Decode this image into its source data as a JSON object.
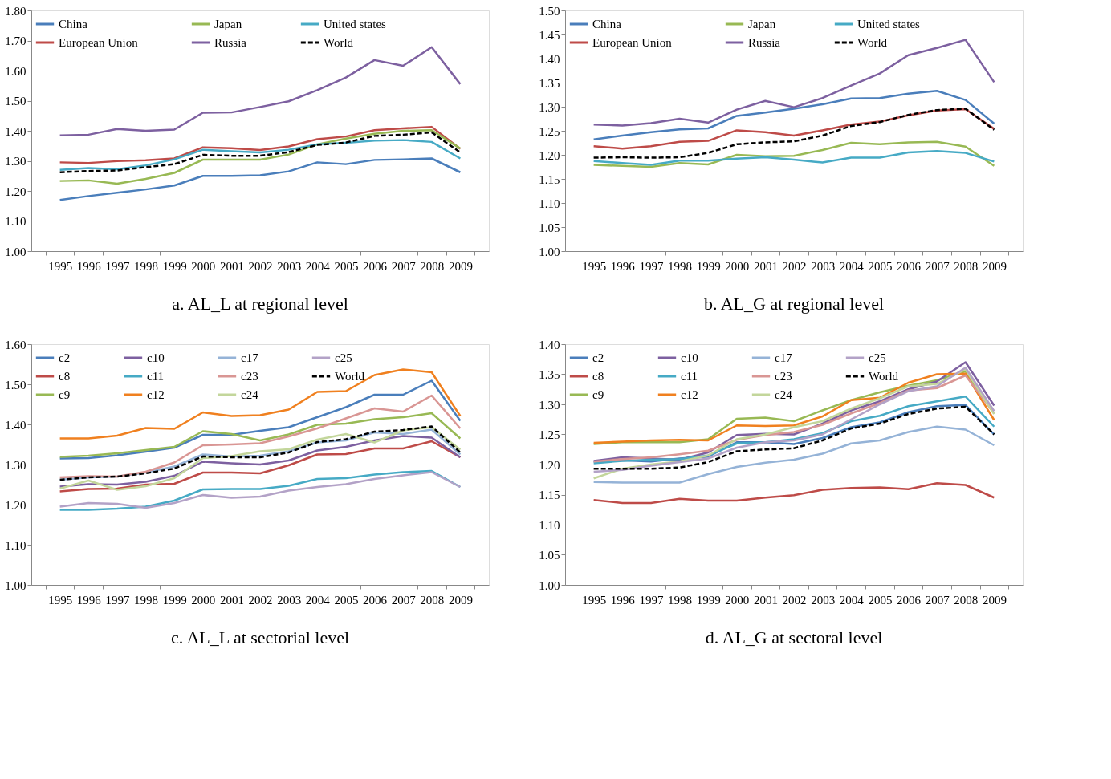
{
  "chart_data": [
    {
      "type": "line",
      "title": "a. AL_L at regional level",
      "categories": [
        "1995",
        "1996",
        "1997",
        "1998",
        "1999",
        "2000",
        "2001",
        "2002",
        "2003",
        "2004",
        "2005",
        "2006",
        "2007",
        "2008",
        "2009"
      ],
      "ylim": [
        1.0,
        1.8
      ],
      "yticks": [
        {
          "value": 1.0,
          "label": "1.00"
        },
        {
          "value": 1.1,
          "label": "1.10"
        },
        {
          "value": 1.2,
          "label": "1.20"
        },
        {
          "value": 1.3,
          "label": "1.30"
        },
        {
          "value": 1.4,
          "label": "1.40"
        },
        {
          "value": 1.5,
          "label": "1.50"
        },
        {
          "value": 1.6,
          "label": "1.60"
        },
        {
          "value": 1.7,
          "label": "1.70"
        },
        {
          "value": 1.8,
          "label": "1.80"
        }
      ],
      "grid": false,
      "legend": "top",
      "marker": "none",
      "series": [
        {
          "name": "China",
          "color": "#4a7ebb",
          "line_style": "solid",
          "values": [
            1.17,
            1.183,
            1.194,
            1.205,
            1.218,
            1.25,
            1.25,
            1.252,
            1.265,
            1.295,
            1.289,
            1.303,
            1.305,
            1.308,
            1.262
          ]
        },
        {
          "name": "European Union",
          "color": "#be4b48",
          "line_style": "solid",
          "values": [
            1.295,
            1.293,
            1.299,
            1.302,
            1.308,
            1.345,
            1.342,
            1.336,
            1.348,
            1.372,
            1.381,
            1.402,
            1.408,
            1.413,
            1.34
          ]
        },
        {
          "name": "Japan",
          "color": "#98b954",
          "line_style": "solid",
          "values": [
            1.233,
            1.235,
            1.224,
            1.24,
            1.26,
            1.304,
            1.304,
            1.304,
            1.321,
            1.355,
            1.374,
            1.39,
            1.4,
            1.402,
            1.341
          ]
        },
        {
          "name": "Russia",
          "color": "#7d60a0",
          "line_style": "solid",
          "values": [
            1.385,
            1.387,
            1.406,
            1.4,
            1.404,
            1.46,
            1.461,
            1.479,
            1.498,
            1.535,
            1.577,
            1.635,
            1.616,
            1.678,
            1.555
          ]
        },
        {
          "name": "United states",
          "color": "#46aac5",
          "line_style": "solid",
          "values": [
            1.27,
            1.276,
            1.272,
            1.285,
            1.305,
            1.337,
            1.332,
            1.328,
            1.337,
            1.355,
            1.36,
            1.367,
            1.369,
            1.363,
            1.308
          ]
        },
        {
          "name": "World",
          "color": "#000000",
          "line_style": "dashed",
          "values": [
            1.262,
            1.266,
            1.268,
            1.279,
            1.289,
            1.32,
            1.317,
            1.317,
            1.329,
            1.353,
            1.361,
            1.383,
            1.387,
            1.395,
            1.328
          ]
        }
      ]
    },
    {
      "type": "line",
      "title": "b. AL_G at regional level",
      "categories": [
        "1995",
        "1996",
        "1997",
        "1998",
        "1999",
        "2000",
        "2001",
        "2002",
        "2003",
        "2004",
        "2005",
        "2006",
        "2007",
        "2008",
        "2009"
      ],
      "ylim": [
        1.0,
        1.5
      ],
      "yticks": [
        {
          "value": 1.0,
          "label": "1.00"
        },
        {
          "value": 1.05,
          "label": "1.05"
        },
        {
          "value": 1.1,
          "label": "1.10"
        },
        {
          "value": 1.15,
          "label": "1.15"
        },
        {
          "value": 1.2,
          "label": "1.20"
        },
        {
          "value": 1.25,
          "label": "1.25"
        },
        {
          "value": 1.3,
          "label": "1.30"
        },
        {
          "value": 1.35,
          "label": "1.35"
        },
        {
          "value": 1.4,
          "label": "1.40"
        },
        {
          "value": 1.45,
          "label": "1.45"
        },
        {
          "value": 1.5,
          "label": "1.50"
        }
      ],
      "grid": false,
      "legend": "top",
      "marker": "none",
      "series": [
        {
          "name": "China",
          "color": "#4a7ebb",
          "line_style": "solid",
          "values": [
            1.232,
            1.24,
            1.247,
            1.253,
            1.255,
            1.281,
            1.288,
            1.296,
            1.305,
            1.317,
            1.318,
            1.327,
            1.333,
            1.314,
            1.265
          ]
        },
        {
          "name": "European Union",
          "color": "#be4b48",
          "line_style": "solid",
          "values": [
            1.218,
            1.213,
            1.218,
            1.227,
            1.229,
            1.251,
            1.247,
            1.24,
            1.251,
            1.263,
            1.269,
            1.282,
            1.292,
            1.295,
            1.254
          ]
        },
        {
          "name": "Japan",
          "color": "#98b954",
          "line_style": "solid",
          "values": [
            1.179,
            1.177,
            1.175,
            1.183,
            1.18,
            1.2,
            1.197,
            1.198,
            1.21,
            1.225,
            1.222,
            1.226,
            1.227,
            1.217,
            1.177
          ]
        },
        {
          "name": "Russia",
          "color": "#7d60a0",
          "line_style": "solid",
          "values": [
            1.263,
            1.261,
            1.266,
            1.275,
            1.267,
            1.294,
            1.312,
            1.299,
            1.318,
            1.344,
            1.369,
            1.407,
            1.422,
            1.439,
            1.351
          ]
        },
        {
          "name": "United states",
          "color": "#46aac5",
          "line_style": "solid",
          "values": [
            1.187,
            1.183,
            1.179,
            1.188,
            1.188,
            1.192,
            1.195,
            1.19,
            1.184,
            1.194,
            1.194,
            1.205,
            1.208,
            1.204,
            1.186
          ]
        },
        {
          "name": "World",
          "color": "#000000",
          "line_style": "dashed",
          "values": [
            1.194,
            1.195,
            1.194,
            1.195,
            1.204,
            1.222,
            1.226,
            1.228,
            1.24,
            1.26,
            1.268,
            1.283,
            1.293,
            1.296,
            1.252
          ]
        }
      ]
    },
    {
      "type": "line",
      "title": "c. AL_L at  sectorial level",
      "categories": [
        "1995",
        "1996",
        "1997",
        "1998",
        "1999",
        "2000",
        "2001",
        "2002",
        "2003",
        "2004",
        "2005",
        "2006",
        "2007",
        "2008",
        "2009"
      ],
      "ylim": [
        1.0,
        1.6
      ],
      "yticks": [
        {
          "value": 1.0,
          "label": "1.00"
        },
        {
          "value": 1.1,
          "label": "1.10"
        },
        {
          "value": 1.2,
          "label": "1.20"
        },
        {
          "value": 1.3,
          "label": "1.30"
        },
        {
          "value": 1.4,
          "label": "1.40"
        },
        {
          "value": 1.5,
          "label": "1.50"
        },
        {
          "value": 1.6,
          "label": "1.60"
        }
      ],
      "grid": false,
      "legend": "top",
      "marker": "none",
      "series": [
        {
          "name": "c2",
          "color": "#4a7ebb",
          "line_style": "solid",
          "values": [
            1.315,
            1.316,
            1.323,
            1.332,
            1.342,
            1.374,
            1.374,
            1.384,
            1.393,
            1.418,
            1.443,
            1.474,
            1.474,
            1.509,
            1.409
          ]
        },
        {
          "name": "c8",
          "color": "#be4b48",
          "line_style": "solid",
          "values": [
            1.233,
            1.239,
            1.24,
            1.25,
            1.252,
            1.28,
            1.28,
            1.278,
            1.298,
            1.325,
            1.326,
            1.34,
            1.34,
            1.358,
            1.318
          ]
        },
        {
          "name": "c9",
          "color": "#98b954",
          "line_style": "solid",
          "values": [
            1.319,
            1.322,
            1.328,
            1.336,
            1.344,
            1.383,
            1.376,
            1.36,
            1.375,
            1.399,
            1.402,
            1.413,
            1.418,
            1.428,
            1.365
          ]
        },
        {
          "name": "c10",
          "color": "#7d60a0",
          "line_style": "solid",
          "values": [
            1.245,
            1.251,
            1.25,
            1.257,
            1.272,
            1.307,
            1.303,
            1.3,
            1.31,
            1.335,
            1.344,
            1.36,
            1.371,
            1.367,
            1.318
          ]
        },
        {
          "name": "c11",
          "color": "#46aac5",
          "line_style": "solid",
          "values": [
            1.187,
            1.187,
            1.19,
            1.195,
            1.21,
            1.238,
            1.239,
            1.239,
            1.247,
            1.264,
            1.266,
            1.275,
            1.281,
            1.284,
            1.244
          ]
        },
        {
          "name": "c12",
          "color": "#f0801f",
          "line_style": "solid",
          "values": [
            1.365,
            1.365,
            1.372,
            1.391,
            1.389,
            1.43,
            1.421,
            1.423,
            1.437,
            1.481,
            1.483,
            1.523,
            1.537,
            1.53,
            1.421
          ]
        },
        {
          "name": "c17",
          "color": "#95b3d7",
          "line_style": "solid",
          "values": [
            1.262,
            1.268,
            1.27,
            1.28,
            1.295,
            1.325,
            1.32,
            1.322,
            1.333,
            1.355,
            1.36,
            1.38,
            1.376,
            1.387,
            1.325
          ]
        },
        {
          "name": "c23",
          "color": "#d99694",
          "line_style": "solid",
          "values": [
            1.268,
            1.271,
            1.27,
            1.282,
            1.305,
            1.348,
            1.35,
            1.353,
            1.37,
            1.39,
            1.415,
            1.44,
            1.432,
            1.472,
            1.39
          ]
        },
        {
          "name": "c24",
          "color": "#c3d69b",
          "line_style": "solid",
          "values": [
            1.24,
            1.26,
            1.237,
            1.246,
            1.266,
            1.316,
            1.321,
            1.333,
            1.338,
            1.362,
            1.376,
            1.355,
            1.385,
            1.393,
            1.337
          ]
        },
        {
          "name": "c25",
          "color": "#b3a2c7",
          "line_style": "solid",
          "values": [
            1.195,
            1.204,
            1.202,
            1.192,
            1.204,
            1.224,
            1.217,
            1.22,
            1.235,
            1.244,
            1.251,
            1.264,
            1.273,
            1.281,
            1.244
          ]
        },
        {
          "name": "World",
          "color": "#000000",
          "line_style": "dashed",
          "values": [
            1.262,
            1.268,
            1.27,
            1.278,
            1.29,
            1.32,
            1.318,
            1.318,
            1.33,
            1.356,
            1.363,
            1.382,
            1.386,
            1.395,
            1.33
          ]
        }
      ]
    },
    {
      "type": "line",
      "title": "d. AL_G at sectoral level",
      "categories": [
        "1995",
        "1996",
        "1997",
        "1998",
        "1999",
        "2000",
        "2001",
        "2002",
        "2003",
        "2004",
        "2005",
        "2006",
        "2007",
        "2008",
        "2009"
      ],
      "ylim": [
        1.0,
        1.4
      ],
      "yticks": [
        {
          "value": 1.0,
          "label": "1.00"
        },
        {
          "value": 1.05,
          "label": "1.05"
        },
        {
          "value": 1.1,
          "label": "1.10"
        },
        {
          "value": 1.15,
          "label": "1.15"
        },
        {
          "value": 1.2,
          "label": "1.20"
        },
        {
          "value": 1.25,
          "label": "1.25"
        },
        {
          "value": 1.3,
          "label": "1.30"
        },
        {
          "value": 1.35,
          "label": "1.35"
        },
        {
          "value": 1.4,
          "label": "1.40"
        }
      ],
      "grid": false,
      "legend": "top",
      "marker": "none",
      "series": [
        {
          "name": "c2",
          "color": "#4a7ebb",
          "line_style": "solid",
          "values": [
            1.205,
            1.207,
            1.205,
            1.21,
            1.213,
            1.237,
            1.237,
            1.234,
            1.244,
            1.262,
            1.27,
            1.287,
            1.297,
            1.299,
            1.25
          ]
        },
        {
          "name": "c8",
          "color": "#be4b48",
          "line_style": "solid",
          "values": [
            1.141,
            1.136,
            1.136,
            1.143,
            1.14,
            1.14,
            1.145,
            1.149,
            1.158,
            1.161,
            1.162,
            1.159,
            1.169,
            1.166,
            1.145
          ]
        },
        {
          "name": "c9",
          "color": "#98b954",
          "line_style": "solid",
          "values": [
            1.234,
            1.237,
            1.237,
            1.237,
            1.242,
            1.276,
            1.278,
            1.272,
            1.29,
            1.307,
            1.32,
            1.331,
            1.34,
            1.355,
            1.285
          ]
        },
        {
          "name": "c10",
          "color": "#7d60a0",
          "line_style": "solid",
          "values": [
            1.206,
            1.212,
            1.21,
            1.208,
            1.22,
            1.249,
            1.251,
            1.25,
            1.268,
            1.29,
            1.305,
            1.325,
            1.338,
            1.37,
            1.298
          ]
        },
        {
          "name": "c11",
          "color": "#46aac5",
          "line_style": "solid",
          "values": [
            1.202,
            1.206,
            1.208,
            1.209,
            1.215,
            1.235,
            1.237,
            1.242,
            1.252,
            1.272,
            1.281,
            1.297,
            1.305,
            1.313,
            1.263
          ]
        },
        {
          "name": "c12",
          "color": "#f0801f",
          "line_style": "solid",
          "values": [
            1.236,
            1.238,
            1.24,
            1.241,
            1.24,
            1.265,
            1.264,
            1.265,
            1.28,
            1.307,
            1.311,
            1.336,
            1.35,
            1.351,
            1.274
          ]
        },
        {
          "name": "c17",
          "color": "#95b3d7",
          "line_style": "solid",
          "values": [
            1.171,
            1.17,
            1.17,
            1.17,
            1.184,
            1.196,
            1.203,
            1.208,
            1.218,
            1.235,
            1.24,
            1.254,
            1.263,
            1.258,
            1.232
          ]
        },
        {
          "name": "c23",
          "color": "#d99694",
          "line_style": "solid",
          "values": [
            1.205,
            1.209,
            1.212,
            1.217,
            1.223,
            1.241,
            1.249,
            1.254,
            1.266,
            1.285,
            1.302,
            1.323,
            1.327,
            1.348,
            1.285
          ]
        },
        {
          "name": "c24",
          "color": "#c3d69b",
          "line_style": "solid",
          "values": [
            1.177,
            1.193,
            1.2,
            1.205,
            1.215,
            1.242,
            1.25,
            1.262,
            1.272,
            1.293,
            1.31,
            1.33,
            1.334,
            1.358,
            1.284
          ]
        },
        {
          "name": "c25",
          "color": "#b3a2c7",
          "line_style": "solid",
          "values": [
            1.188,
            1.191,
            1.198,
            1.204,
            1.21,
            1.228,
            1.237,
            1.24,
            1.25,
            1.275,
            1.3,
            1.322,
            1.33,
            1.361,
            1.289
          ]
        },
        {
          "name": "World",
          "color": "#000000",
          "line_style": "dashed",
          "values": [
            1.193,
            1.193,
            1.193,
            1.195,
            1.204,
            1.222,
            1.225,
            1.227,
            1.24,
            1.26,
            1.268,
            1.284,
            1.293,
            1.296,
            1.25
          ]
        }
      ]
    }
  ]
}
